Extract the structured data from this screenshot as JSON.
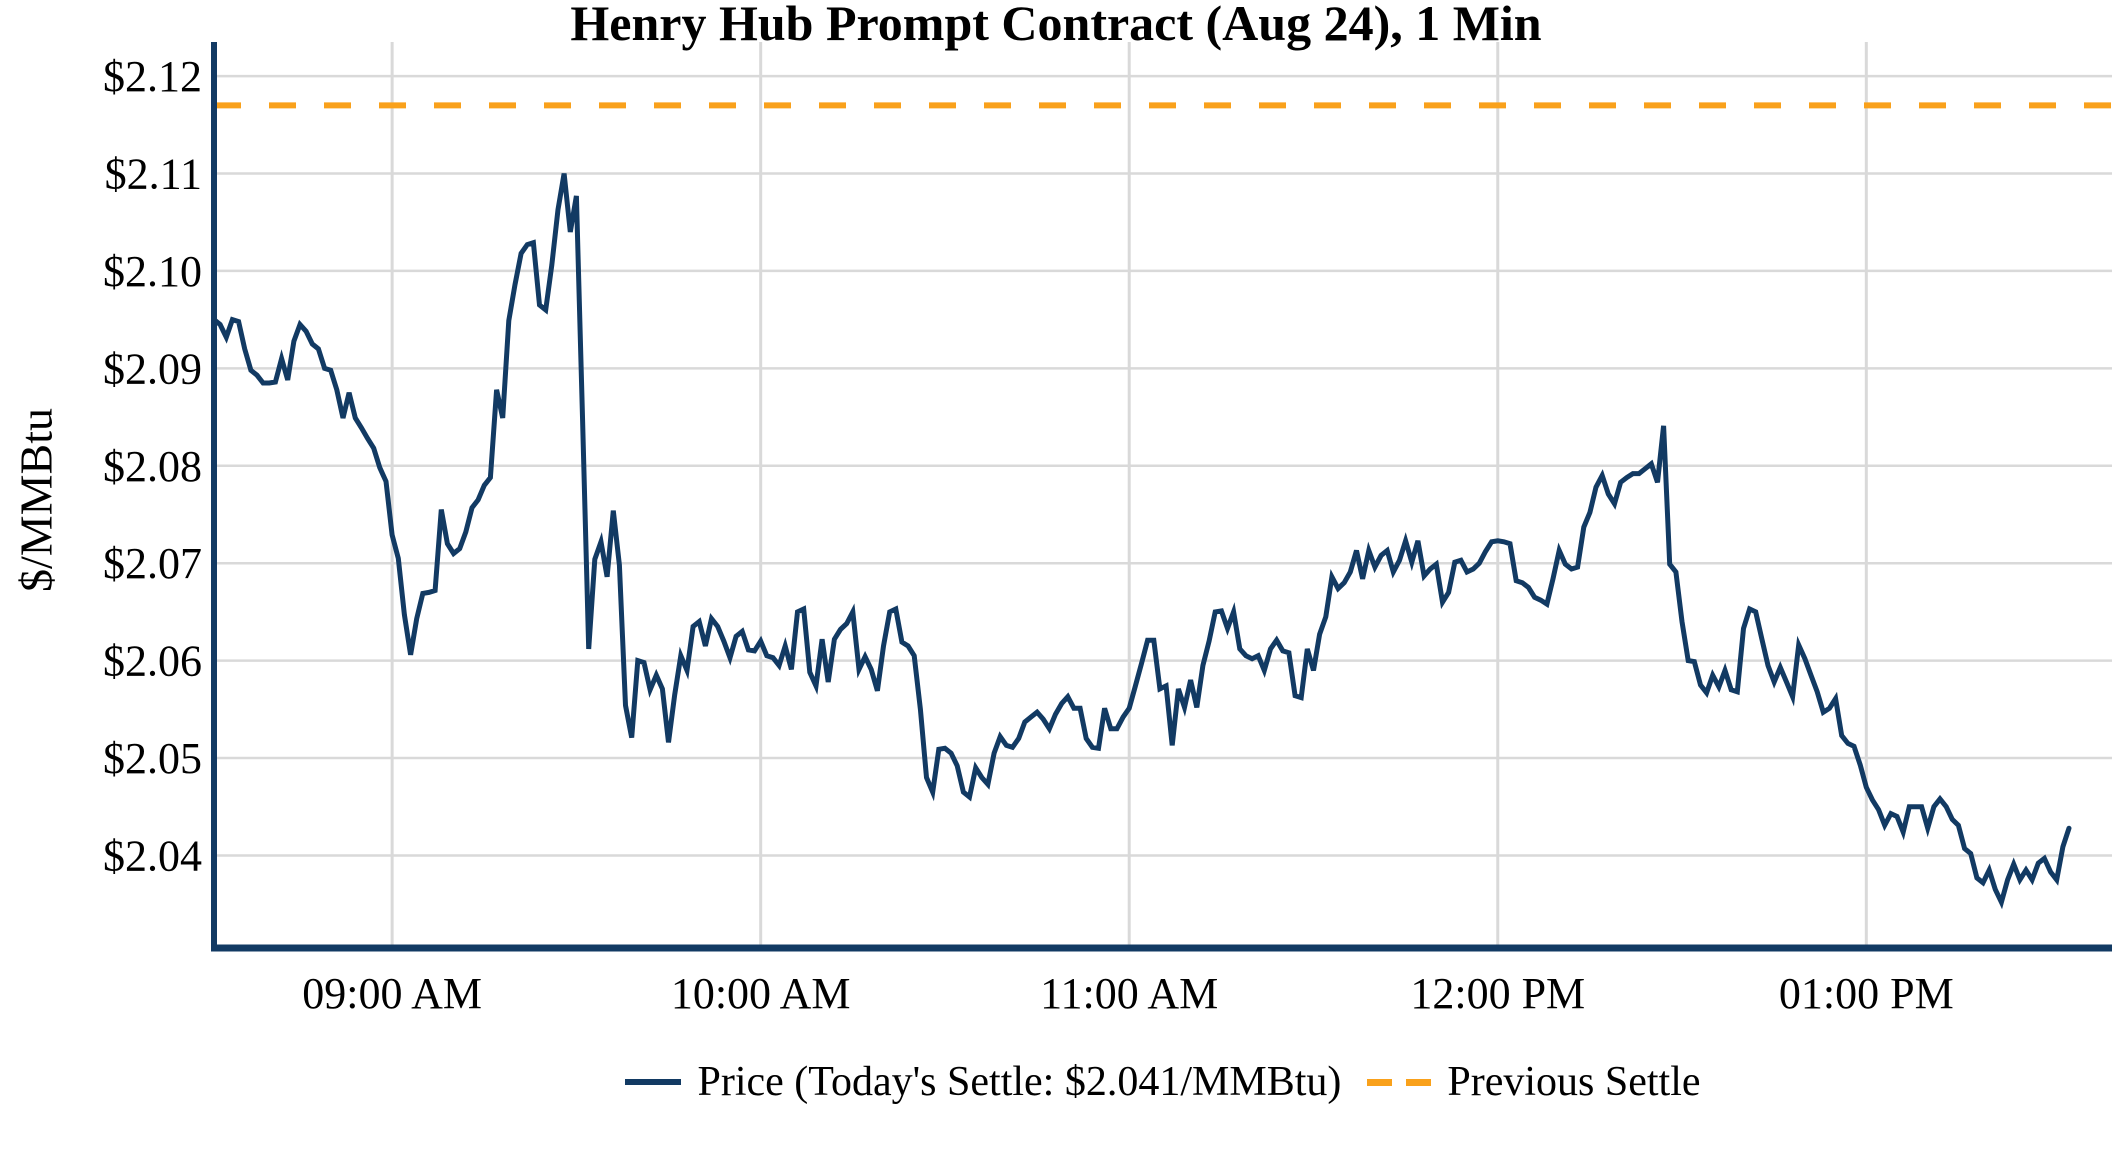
{
  "chart": {
    "title": "Henry Hub Prompt Contract (Aug 24), 1 Min",
    "y_axis_label": "$/MMBtu",
    "colors": {
      "price_line": "#123A63",
      "previous_settle": "#F9A11B",
      "gridline": "#D9D9D9",
      "axis": "#123A63",
      "text": "#000000",
      "background": "#FFFFFF"
    },
    "legend": {
      "price_label": "Price (Today's Settle: $2.041/MMBtu)",
      "previous_settle_label": "Previous Settle"
    }
  },
  "chart_data": {
    "type": "line",
    "title": "Henry Hub Prompt Contract (Aug 24), 1 Min",
    "xlabel": "",
    "ylabel": "$/MMBtu",
    "grid": true,
    "legend_position": "bottom",
    "x_start": "08:31 AM",
    "x_end": "01:33 PM",
    "x_interval_minutes": 1,
    "x_start_minute": 511,
    "x_range_minutes": [
      511,
      820
    ],
    "x_ticks": [
      "09:00 AM",
      "10:00 AM",
      "11:00 AM",
      "12:00 PM",
      "01:00 PM"
    ],
    "x_tick_minutes": [
      540,
      600,
      660,
      720,
      780
    ],
    "ylim": [
      2.0305,
      2.1235
    ],
    "y_ticks": [
      2.04,
      2.05,
      2.06,
      2.07,
      2.08,
      2.09,
      2.1,
      2.11,
      2.12
    ],
    "y_tick_labels": [
      "$2.04",
      "$2.05",
      "$2.06",
      "$2.07",
      "$2.08",
      "$2.09",
      "$2.10",
      "$2.11",
      "$2.12"
    ],
    "previous_settle": 2.117,
    "today_settle": 2.041,
    "series": [
      {
        "name": "Price",
        "values": [
          2.095,
          2.0945,
          2.0932,
          2.095,
          2.0948,
          2.092,
          2.0898,
          2.0893,
          2.0885,
          2.0885,
          2.0886,
          2.091,
          2.0888,
          2.0928,
          2.0945,
          2.0938,
          2.0925,
          2.092,
          2.09,
          2.0898,
          2.0878,
          2.0849,
          2.0875,
          2.0849,
          2.0839,
          2.0828,
          2.0818,
          2.0798,
          2.0784,
          2.0729,
          2.0705,
          2.0647,
          2.0606,
          2.0643,
          2.0669,
          2.067,
          2.0672,
          2.0755,
          2.072,
          2.071,
          2.0715,
          2.0732,
          2.0757,
          2.0765,
          2.078,
          2.0788,
          2.0878,
          2.0849,
          2.0949,
          2.0986,
          2.1018,
          2.1027,
          2.1029,
          2.0965,
          2.096,
          2.1006,
          2.1063,
          2.11,
          2.104,
          2.1077,
          2.085,
          2.0612,
          2.0704,
          2.0722,
          2.0686,
          2.0754,
          2.0698,
          2.0554,
          2.0521,
          2.06,
          2.0598,
          2.057,
          2.0585,
          2.0571,
          2.0516,
          2.0565,
          2.0605,
          2.059,
          2.0635,
          2.064,
          2.0615,
          2.0643,
          2.0635,
          2.062,
          2.0603,
          2.0625,
          2.063,
          2.0611,
          2.061,
          2.062,
          2.0605,
          2.0603,
          2.0595,
          2.0615,
          2.0591,
          2.065,
          2.0653,
          2.0588,
          2.0574,
          2.0622,
          2.0578,
          2.0622,
          2.0632,
          2.0638,
          2.065,
          2.0591,
          2.0604,
          2.0591,
          2.0569,
          2.0615,
          2.065,
          2.0653,
          2.0619,
          2.0615,
          2.0605,
          2.055,
          2.048,
          2.0465,
          2.0509,
          2.051,
          2.0505,
          2.0492,
          2.0465,
          2.046,
          2.049,
          2.048,
          2.0473,
          2.0505,
          2.0522,
          2.0513,
          2.0511,
          2.052,
          2.0537,
          2.0542,
          2.0547,
          2.054,
          2.053,
          2.0545,
          2.0556,
          2.0563,
          2.0551,
          2.0551,
          2.052,
          2.0511,
          2.051,
          2.0551,
          2.053,
          2.053,
          2.0542,
          2.0551,
          2.0574,
          2.0597,
          2.0621,
          2.0621,
          2.0571,
          2.0574,
          2.0513,
          2.0571,
          2.0552,
          2.058,
          2.0552,
          2.0595,
          2.062,
          2.065,
          2.0651,
          2.0633,
          2.065,
          2.0612,
          2.0605,
          2.0602,
          2.0605,
          2.059,
          2.0612,
          2.0621,
          2.061,
          2.0608,
          2.0564,
          2.0562,
          2.0612,
          2.059,
          2.0627,
          2.0645,
          2.0686,
          2.0674,
          2.068,
          2.0691,
          2.0713,
          2.0684,
          2.0713,
          2.0696,
          2.0708,
          2.0713,
          2.0691,
          2.0703,
          2.0723,
          2.0701,
          2.0723,
          2.0687,
          2.0694,
          2.0699,
          2.066,
          2.067,
          2.0701,
          2.0703,
          2.0691,
          2.0694,
          2.07,
          2.0712,
          2.0722,
          2.0723,
          2.0722,
          2.072,
          2.0682,
          2.068,
          2.0675,
          2.0665,
          2.0662,
          2.0658,
          2.0684,
          2.0713,
          2.0699,
          2.0694,
          2.0696,
          2.0737,
          2.0752,
          2.0778,
          2.079,
          2.0771,
          2.0761,
          2.0783,
          2.0788,
          2.0792,
          2.0792,
          2.0797,
          2.0802,
          2.0783,
          2.0841,
          2.0699,
          2.0691,
          2.064,
          2.06,
          2.0599,
          2.0575,
          2.0567,
          2.0585,
          2.0573,
          2.059,
          2.057,
          2.0568,
          2.0633,
          2.0653,
          2.065,
          2.0622,
          2.0595,
          2.0578,
          2.0593,
          2.0578,
          2.0563,
          2.0616,
          2.0602,
          2.0585,
          2.0568,
          2.0547,
          2.0551,
          2.0561,
          2.0523,
          2.0515,
          2.0512,
          2.0493,
          2.047,
          2.0457,
          2.0447,
          2.0431,
          2.0443,
          2.044,
          2.0424,
          2.045,
          2.045,
          2.045,
          2.0428,
          2.045,
          2.0458,
          2.045,
          2.0437,
          2.0431,
          2.0407,
          2.0402,
          2.0377,
          2.0372,
          2.0385,
          2.0365,
          2.0352,
          2.0375,
          2.0391,
          2.0375,
          2.0385,
          2.0375,
          2.0392,
          2.0397,
          2.0383,
          2.0375,
          2.0409,
          2.0428
        ]
      }
    ]
  }
}
